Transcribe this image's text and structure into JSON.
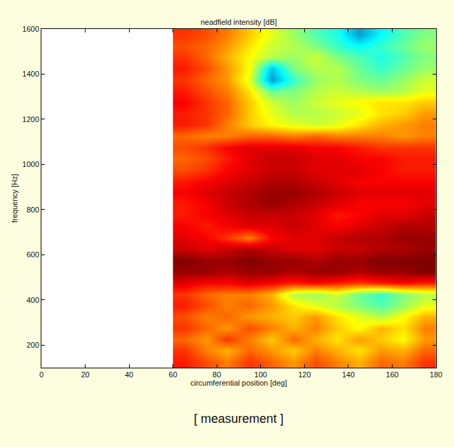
{
  "chart_data": {
    "type": "heatmap",
    "title": "neadfield intensity [dB]",
    "x_label": "circumferential position [deg]",
    "y_label": "frequency [Hz]",
    "annotations": [
      "[ measurement ]"
    ],
    "xlim": [
      0,
      180
    ],
    "xticks": [
      0,
      20,
      40,
      60,
      80,
      100,
      120,
      140,
      160,
      180
    ],
    "ylim": [
      100,
      1600
    ],
    "yticks": [
      200,
      400,
      600,
      800,
      1000,
      1200,
      1400,
      1600
    ],
    "grid": false,
    "zlim": [
      0,
      40
    ],
    "x": [
      65,
      75,
      85,
      95,
      105,
      115,
      125,
      135,
      145,
      155,
      165,
      175
    ],
    "y": [
      125,
      175,
      225,
      275,
      325,
      375,
      425,
      475,
      525,
      575,
      625,
      675,
      725,
      775,
      825,
      875,
      925,
      975,
      1025,
      1075,
      1125,
      1175,
      1225,
      1275,
      1325,
      1375,
      1425,
      1475,
      1525,
      1575
    ],
    "cells": [
      [
        34,
        32,
        30,
        33,
        31,
        29,
        32,
        30,
        28,
        31,
        30,
        33
      ],
      [
        33,
        30,
        28,
        31,
        29,
        27,
        30,
        28,
        26,
        29,
        28,
        31
      ],
      [
        31,
        29,
        33,
        30,
        27,
        31,
        28,
        26,
        29,
        27,
        25,
        29
      ],
      [
        33,
        31,
        29,
        32,
        30,
        28,
        30,
        27,
        25,
        28,
        26,
        30
      ],
      [
        32,
        30,
        31,
        29,
        28,
        27,
        29,
        26,
        24,
        22,
        25,
        28
      ],
      [
        34,
        32,
        30,
        31,
        29,
        26,
        24,
        22,
        20,
        18,
        21,
        24
      ],
      [
        33,
        31,
        30,
        30,
        28,
        22,
        21,
        23,
        19,
        17,
        20,
        22
      ],
      [
        36,
        35,
        35,
        36,
        35,
        34,
        35,
        34,
        33,
        34,
        35,
        34
      ],
      [
        39,
        39,
        38,
        39,
        39,
        38,
        39,
        39,
        38,
        39,
        39,
        40
      ],
      [
        40,
        39,
        39,
        40,
        39,
        39,
        38,
        39,
        39,
        40,
        40,
        40
      ],
      [
        37,
        36,
        37,
        38,
        37,
        36,
        36,
        37,
        37,
        38,
        38,
        39
      ],
      [
        36,
        35,
        33,
        30,
        35,
        36,
        36,
        37,
        38,
        38,
        39,
        39
      ],
      [
        35,
        34,
        35,
        36,
        36,
        37,
        36,
        35,
        36,
        37,
        38,
        38
      ],
      [
        34,
        35,
        36,
        37,
        37,
        37,
        36,
        34,
        35,
        36,
        36,
        37
      ],
      [
        34,
        35,
        37,
        38,
        39,
        38,
        37,
        36,
        35,
        35,
        35,
        36
      ],
      [
        35,
        36,
        37,
        38,
        39,
        39,
        38,
        37,
        36,
        36,
        36,
        36
      ],
      [
        34,
        35,
        36,
        37,
        38,
        38,
        37,
        36,
        35,
        35,
        35,
        35
      ],
      [
        32,
        33,
        35,
        36,
        37,
        37,
        36,
        36,
        36,
        35,
        34,
        34
      ],
      [
        31,
        32,
        34,
        36,
        37,
        37,
        36,
        36,
        35,
        35,
        34,
        34
      ],
      [
        32,
        33,
        35,
        36,
        36,
        36,
        35,
        35,
        34,
        33,
        33,
        33
      ],
      [
        31,
        30,
        30,
        31,
        31,
        30,
        31,
        30,
        30,
        30,
        29,
        30
      ],
      [
        34,
        33,
        30,
        27,
        25,
        24,
        23,
        24,
        26,
        28,
        29,
        30
      ],
      [
        34,
        33,
        31,
        27,
        24,
        22,
        22,
        23,
        24,
        26,
        27,
        29
      ],
      [
        35,
        33,
        31,
        27,
        23,
        21,
        23,
        24,
        25,
        26,
        26,
        27
      ],
      [
        34,
        32,
        30,
        26,
        19,
        20,
        22,
        23,
        22,
        21,
        22,
        24
      ],
      [
        33,
        31,
        29,
        24,
        10,
        17,
        21,
        22,
        20,
        19,
        21,
        23
      ],
      [
        34,
        32,
        29,
        25,
        12,
        20,
        22,
        22,
        19,
        17,
        19,
        21
      ],
      [
        33,
        31,
        28,
        25,
        22,
        21,
        23,
        20,
        18,
        16,
        18,
        20
      ],
      [
        32,
        31,
        29,
        26,
        23,
        22,
        20,
        17,
        15,
        17,
        19,
        21
      ],
      [
        33,
        32,
        30,
        27,
        24,
        21,
        18,
        16,
        10,
        15,
        18,
        20
      ]
    ]
  }
}
